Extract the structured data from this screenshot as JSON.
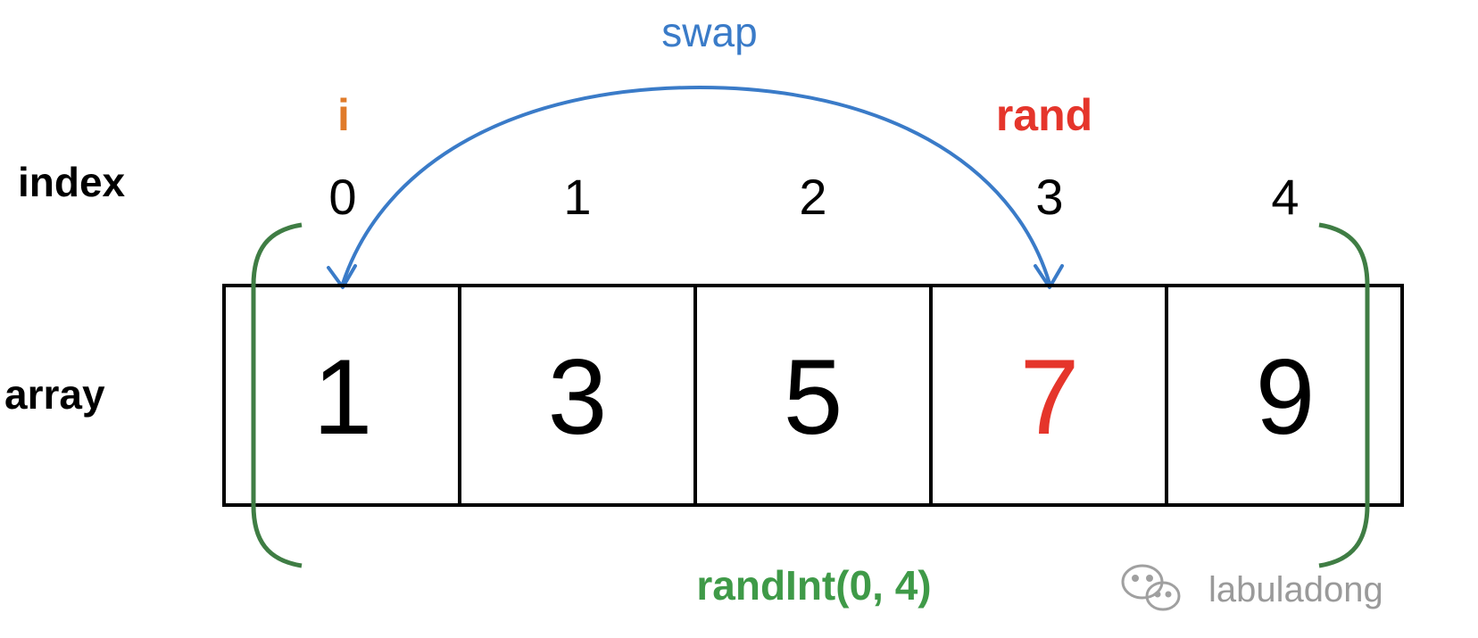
{
  "labels": {
    "swap": "swap",
    "i": "i",
    "rand": "rand",
    "index": "index",
    "array": "array",
    "randint": "randInt(0, 4)",
    "watermark": "labuladong"
  },
  "indices": [
    "0",
    "1",
    "2",
    "3",
    "4"
  ],
  "values": [
    "1",
    "3",
    "5",
    "7",
    "9"
  ],
  "highlight_index": 3,
  "colors": {
    "swap": "#3a7bc8",
    "i": "#e07b2a",
    "rand": "#e5352b",
    "randint": "#3f9a48",
    "bracket": "#3f7d44",
    "text": "#000000",
    "watermark": "#9a9a9a"
  },
  "icons": {
    "watermark": "wechat-icon"
  }
}
